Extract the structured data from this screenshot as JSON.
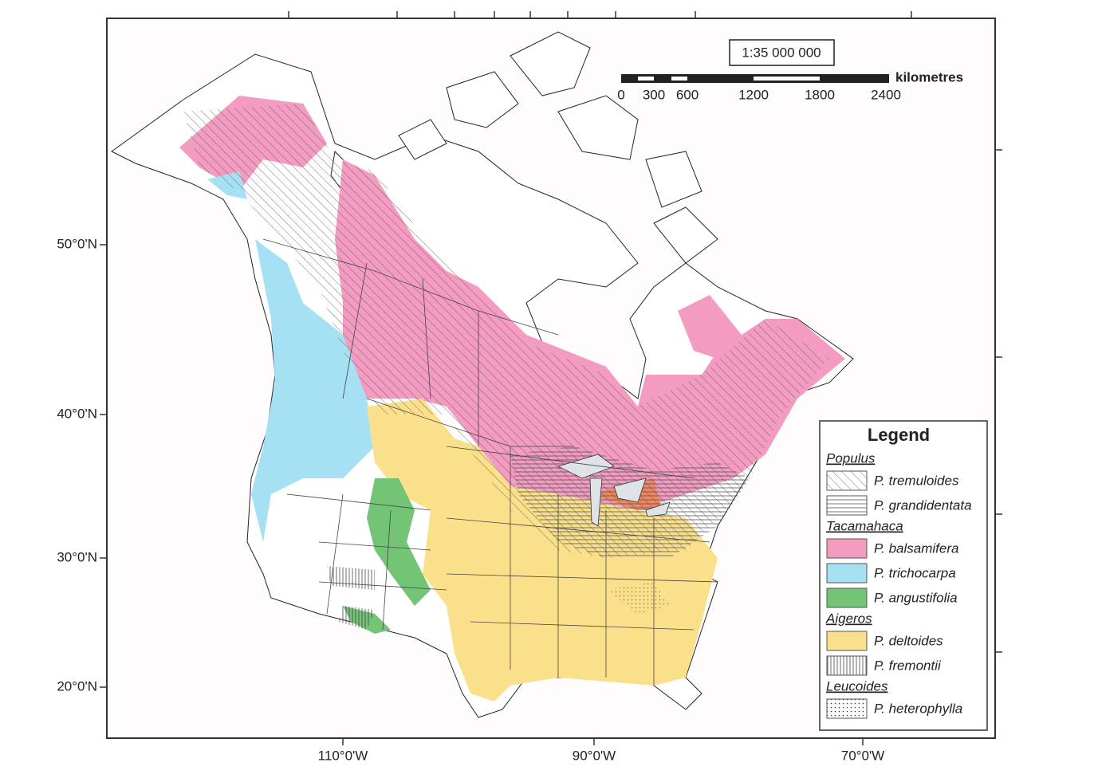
{
  "map": {
    "scale": {
      "ratio": "1:35 000 000",
      "labels": [
        "0",
        "300",
        "600",
        "1200",
        "1800",
        "2400"
      ],
      "unit": "kilometres"
    },
    "lat_labels": [
      "50°0'N",
      "40°0'N",
      "30°0'N",
      "20°0'N"
    ],
    "lon_labels": [
      "110°0'W",
      "90°0'W",
      "70°0'W"
    ]
  },
  "legend": {
    "title": "Legend",
    "groups": [
      {
        "name": "Populus",
        "items": [
          "P. tremuloides",
          "P. grandidentata"
        ]
      },
      {
        "name": "Tacamahaca",
        "items": [
          "P. balsamifera",
          "P. trichocarpa",
          "P. angustifolia"
        ]
      },
      {
        "name": "Aigeros",
        "items": [
          "P. deltoides",
          "P. fremontii"
        ]
      },
      {
        "name": "Leucoides",
        "items": [
          "P. heterophylla"
        ]
      }
    ]
  }
}
